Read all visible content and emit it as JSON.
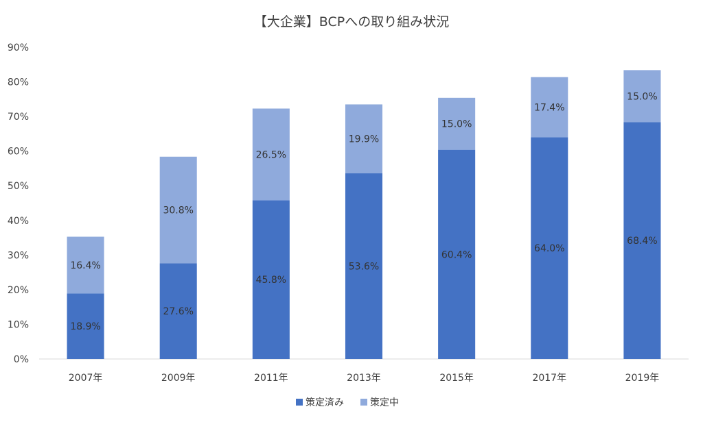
{
  "chart_data": {
    "type": "bar",
    "stacked": true,
    "title": "【大企業】BCPへの取り組み状況",
    "categories": [
      "2007年",
      "2009年",
      "2011年",
      "2013年",
      "2015年",
      "2017年",
      "2019年"
    ],
    "series": [
      {
        "name": "策定済み",
        "values": [
          18.9,
          27.6,
          45.8,
          53.6,
          60.4,
          64.0,
          68.4
        ],
        "color": "#4472C4"
      },
      {
        "name": "策定中",
        "values": [
          16.4,
          30.8,
          26.5,
          19.9,
          15.0,
          17.4,
          15.0
        ],
        "color": "#8FAADC"
      }
    ],
    "ylim": [
      0,
      90
    ],
    "yticks": [
      "0%",
      "10%",
      "20%",
      "30%",
      "40%",
      "50%",
      "60%",
      "70%",
      "80%",
      "90%"
    ],
    "data_label_suffix": "%",
    "grid": false,
    "legend_position": "bottom"
  }
}
